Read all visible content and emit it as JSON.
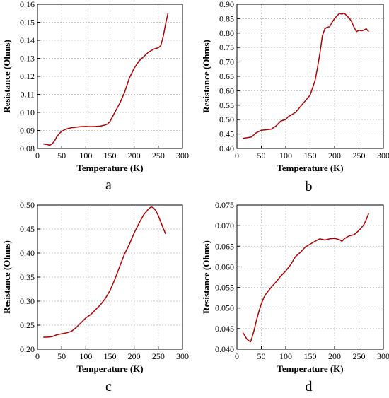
{
  "chart_data": [
    {
      "type": "line",
      "panel_label": "a",
      "xlabel": "Temperature (K)",
      "ylabel": "Resistance (Ohms)",
      "xlim": [
        0,
        300
      ],
      "ylim": [
        0.08,
        0.16
      ],
      "xticks": [
        0,
        50,
        100,
        150,
        200,
        250,
        300
      ],
      "yticks": [
        0.08,
        0.09,
        0.1,
        0.11,
        0.12,
        0.13,
        0.14,
        0.15,
        0.16
      ],
      "ydecimals": 2,
      "grid": true,
      "series": [
        {
          "color": "#b00000",
          "x": [
            12,
            20,
            25,
            30,
            35,
            40,
            45,
            50,
            55,
            60,
            70,
            80,
            90,
            100,
            110,
            120,
            130,
            140,
            145,
            150,
            155,
            160,
            170,
            180,
            190,
            200,
            210,
            220,
            230,
            240,
            245,
            250,
            255,
            260,
            265,
            270
          ],
          "y": [
            0.0825,
            0.0822,
            0.0818,
            0.0825,
            0.084,
            0.0865,
            0.0882,
            0.0895,
            0.0902,
            0.0908,
            0.0915,
            0.0918,
            0.0921,
            0.0922,
            0.0921,
            0.0922,
            0.0924,
            0.093,
            0.0936,
            0.095,
            0.0975,
            0.1,
            0.105,
            0.111,
            0.119,
            0.1245,
            0.1285,
            0.131,
            0.1335,
            0.135,
            0.1355,
            0.1358,
            0.137,
            0.142,
            0.149,
            0.155
          ]
        }
      ]
    },
    {
      "type": "line",
      "panel_label": "b",
      "xlabel": "Temperature (K)",
      "ylabel": "Resistance (Ohms)",
      "xlim": [
        0,
        300
      ],
      "ylim": [
        0.4,
        0.9
      ],
      "xticks": [
        0,
        50,
        100,
        150,
        200,
        250,
        300
      ],
      "yticks": [
        0.4,
        0.45,
        0.5,
        0.55,
        0.6,
        0.65,
        0.7,
        0.75,
        0.8,
        0.85,
        0.9
      ],
      "ydecimals": 2,
      "grid": true,
      "series": [
        {
          "color": "#b00000",
          "x": [
            12,
            20,
            30,
            40,
            50,
            60,
            70,
            80,
            90,
            95,
            100,
            105,
            110,
            120,
            130,
            140,
            150,
            160,
            165,
            170,
            175,
            180,
            185,
            190,
            195,
            200,
            205,
            210,
            215,
            220,
            225,
            230,
            235,
            240,
            245,
            250,
            255,
            260,
            265,
            270
          ],
          "y": [
            0.435,
            0.437,
            0.44,
            0.455,
            0.463,
            0.465,
            0.467,
            0.478,
            0.495,
            0.498,
            0.5,
            0.51,
            0.515,
            0.525,
            0.545,
            0.565,
            0.585,
            0.635,
            0.68,
            0.73,
            0.79,
            0.815,
            0.82,
            0.822,
            0.838,
            0.85,
            0.86,
            0.868,
            0.866,
            0.869,
            0.86,
            0.852,
            0.84,
            0.82,
            0.805,
            0.81,
            0.808,
            0.81,
            0.815,
            0.805
          ]
        }
      ]
    },
    {
      "type": "line",
      "panel_label": "c",
      "xlabel": "Temperature (K)",
      "ylabel": "Resistance (Ohms)",
      "xlim": [
        0,
        300
      ],
      "ylim": [
        0.2,
        0.5
      ],
      "xticks": [
        0,
        50,
        100,
        150,
        200,
        250,
        300
      ],
      "yticks": [
        0.2,
        0.25,
        0.3,
        0.35,
        0.4,
        0.45,
        0.5
      ],
      "ydecimals": 2,
      "grid": true,
      "series": [
        {
          "color": "#b00000",
          "x": [
            12,
            20,
            30,
            40,
            50,
            60,
            70,
            80,
            90,
            100,
            110,
            120,
            130,
            140,
            150,
            160,
            170,
            180,
            190,
            200,
            210,
            220,
            230,
            235,
            240,
            245,
            250,
            255,
            260,
            265
          ],
          "y": [
            0.225,
            0.225,
            0.226,
            0.23,
            0.232,
            0.234,
            0.237,
            0.245,
            0.255,
            0.265,
            0.272,
            0.282,
            0.292,
            0.305,
            0.322,
            0.345,
            0.372,
            0.398,
            0.418,
            0.442,
            0.462,
            0.48,
            0.492,
            0.496,
            0.494,
            0.488,
            0.478,
            0.465,
            0.452,
            0.44
          ]
        }
      ]
    },
    {
      "type": "line",
      "panel_label": "d",
      "xlabel": "Temperature (K)",
      "ylabel": "Resistance (Ohms)",
      "xlim": [
        0,
        300
      ],
      "ylim": [
        0.04,
        0.075
      ],
      "xticks": [
        0,
        50,
        100,
        150,
        200,
        250,
        300
      ],
      "yticks": [
        0.04,
        0.045,
        0.05,
        0.055,
        0.06,
        0.065,
        0.07,
        0.075
      ],
      "ydecimals": 3,
      "grid": true,
      "series": [
        {
          "color": "#b00000",
          "x": [
            12,
            15,
            20,
            25,
            28,
            30,
            35,
            40,
            45,
            50,
            55,
            60,
            70,
            80,
            90,
            100,
            110,
            120,
            130,
            140,
            150,
            160,
            170,
            180,
            190,
            200,
            210,
            215,
            220,
            225,
            230,
            240,
            250,
            260,
            265,
            270
          ],
          "y": [
            0.044,
            0.0435,
            0.0425,
            0.042,
            0.0418,
            0.0425,
            0.0445,
            0.047,
            0.0492,
            0.051,
            0.0525,
            0.0535,
            0.055,
            0.0563,
            0.0578,
            0.059,
            0.0605,
            0.0625,
            0.0635,
            0.0648,
            0.0655,
            0.0662,
            0.0668,
            0.0665,
            0.0668,
            0.0669,
            0.0666,
            0.0662,
            0.0668,
            0.0672,
            0.0675,
            0.0678,
            0.0688,
            0.0702,
            0.0715,
            0.073
          ]
        }
      ]
    }
  ]
}
